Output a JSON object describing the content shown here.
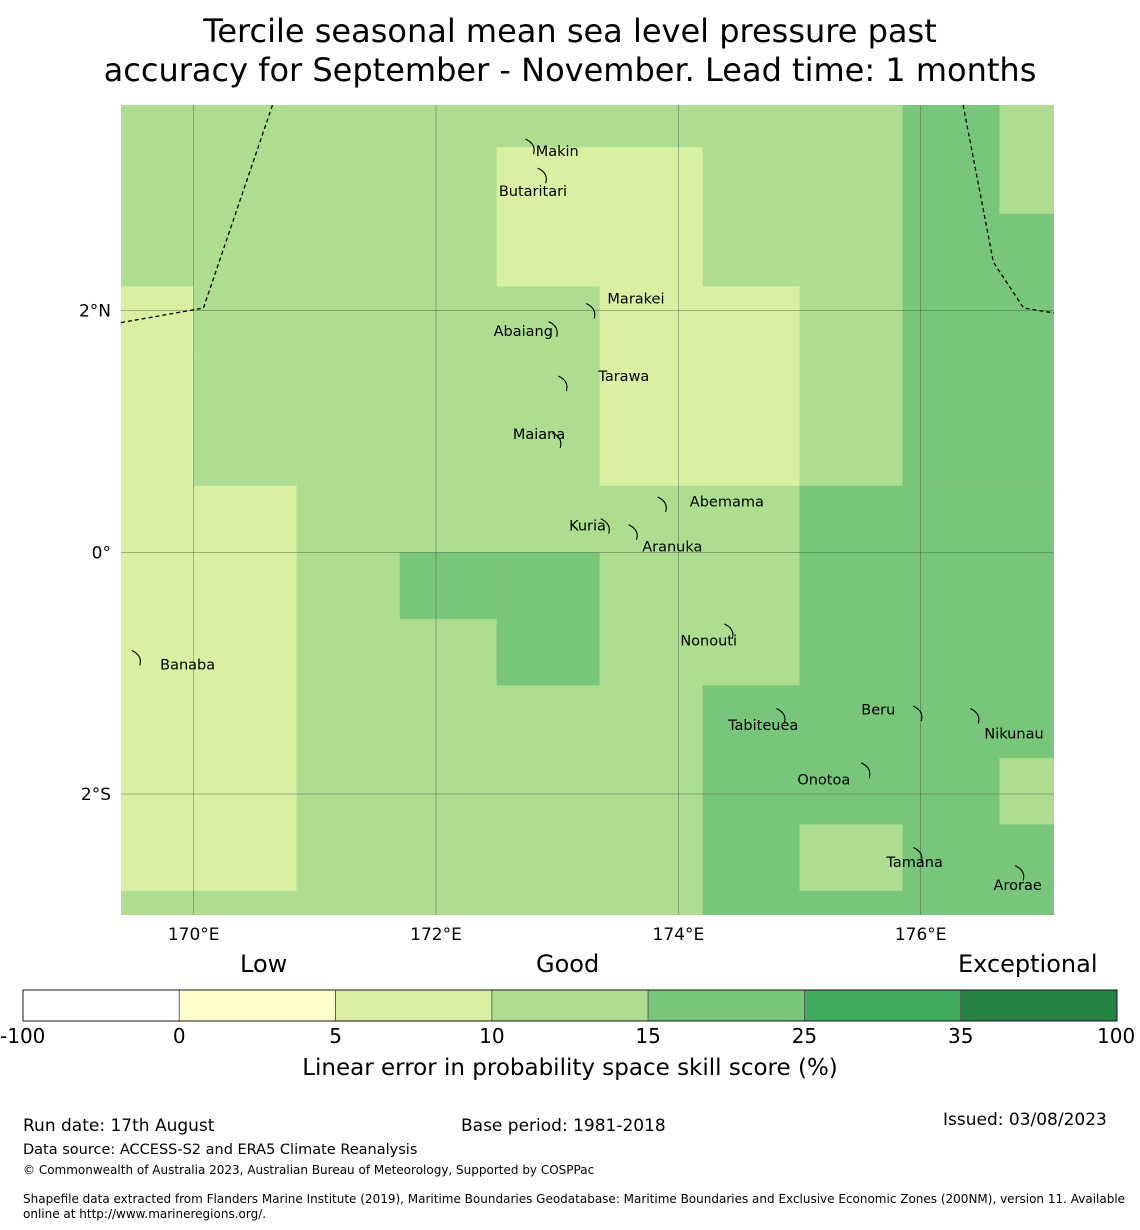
{
  "title_line1": "Tercile seasonal mean sea level pressure past",
  "title_line2": "accuracy for September - November. Lead time: 1 months",
  "map": {
    "lon_range": [
      169.4,
      177.1
    ],
    "lat_range": [
      -3.0,
      3.7
    ],
    "lon_ticks": [
      {
        "lon": 170,
        "label": "170°E"
      },
      {
        "lon": 172,
        "label": "172°E"
      },
      {
        "lon": 174,
        "label": "174°E"
      },
      {
        "lon": 176,
        "label": "176°E"
      }
    ],
    "lat_ticks": [
      {
        "lat": 2,
        "label": "2°N"
      },
      {
        "lat": 0,
        "label": "0°"
      },
      {
        "lat": -2,
        "label": "2°S"
      }
    ],
    "colors": {
      "c5_10": "#d9f0a3",
      "c10_15": "#addd8e",
      "c15_25": "#78c679",
      "c25_35": "#41ab5d",
      "c35_100": "#238443",
      "c0_5": "#ffffcc",
      "neg": "#ffffff"
    },
    "skill_cells": [
      {
        "lon": [
          171.7,
          172.5
        ],
        "lat": [
          -0.55,
          0.0
        ],
        "cat": "c15_25"
      },
      {
        "lon": [
          172.5,
          173.35
        ],
        "lat": [
          -1.1,
          0.0
        ],
        "cat": "c15_25"
      },
      {
        "lon": [
          174.2,
          175.0
        ],
        "lat": [
          -3.0,
          -1.1
        ],
        "cat": "c15_25"
      },
      {
        "lon": [
          175.0,
          177.1
        ],
        "lat": [
          -3.0,
          0.55
        ],
        "cat": "c15_25"
      },
      {
        "lon": [
          175.85,
          177.1
        ],
        "lat": [
          0.55,
          3.7
        ],
        "cat": "c15_25"
      },
      {
        "lon": [
          176.65,
          177.1
        ],
        "lat": [
          2.8,
          3.7
        ],
        "cat": "c10_15"
      },
      {
        "lon": [
          176.65,
          177.1
        ],
        "lat": [
          -2.25,
          -1.7
        ],
        "cat": "c10_15"
      },
      {
        "lon": [
          175.0,
          175.85
        ],
        "lat": [
          -2.8,
          -2.25
        ],
        "cat": "c10_15"
      },
      {
        "lon": [
          169.4,
          170.85
        ],
        "lat": [
          -2.8,
          2.2
        ],
        "cat": "c5_10"
      },
      {
        "lon": [
          170.0,
          170.85
        ],
        "lat": [
          1.65,
          2.2
        ],
        "cat": "c10_15"
      },
      {
        "lon": [
          170.0,
          170.85
        ],
        "lat": [
          0.55,
          1.65
        ],
        "cat": "c10_15"
      },
      {
        "lon": [
          172.5,
          174.2
        ],
        "lat": [
          2.2,
          3.35
        ],
        "cat": "c5_10"
      },
      {
        "lon": [
          173.35,
          175.0
        ],
        "lat": [
          0.55,
          2.2
        ],
        "cat": "c5_10"
      }
    ],
    "boundary_lines": [
      [
        [
          169.4,
          1.9
        ],
        [
          170.08,
          2.02
        ],
        [
          170.65,
          3.7
        ]
      ],
      [
        [
          176.35,
          3.7
        ],
        [
          176.6,
          2.4
        ],
        [
          176.85,
          2.02
        ],
        [
          177.1,
          1.98
        ]
      ]
    ],
    "islands": [
      {
        "name": "Makin",
        "lon": 172.78,
        "lat": 3.36,
        "label_lon": 173.0,
        "label_lat": 3.32
      },
      {
        "name": "Butaritari",
        "lon": 172.88,
        "lat": 3.12,
        "label_lon": 172.8,
        "label_lat": 2.99
      },
      {
        "name": "Marakei",
        "lon": 173.28,
        "lat": 2.0,
        "label_lon": 173.65,
        "label_lat": 2.1
      },
      {
        "name": "Abaiang",
        "lon": 172.97,
        "lat": 1.85,
        "label_lon": 172.72,
        "label_lat": 1.83
      },
      {
        "name": "Tarawa",
        "lon": 173.05,
        "lat": 1.4,
        "label_lon": 173.55,
        "label_lat": 1.46
      },
      {
        "name": "Maiana",
        "lon": 173.0,
        "lat": 0.93,
        "label_lon": 172.85,
        "label_lat": 0.98
      },
      {
        "name": "Abemama",
        "lon": 173.87,
        "lat": 0.4,
        "label_lon": 174.4,
        "label_lat": 0.42
      },
      {
        "name": "Kuria",
        "lon": 173.4,
        "lat": 0.22,
        "label_lon": 173.25,
        "label_lat": 0.22
      },
      {
        "name": "Aranuka",
        "lon": 173.63,
        "lat": 0.17,
        "label_lon": 173.95,
        "label_lat": 0.05
      },
      {
        "name": "Nonouti",
        "lon": 174.42,
        "lat": -0.65,
        "label_lon": 174.25,
        "label_lat": -0.73
      },
      {
        "name": "Banaba",
        "lon": 169.53,
        "lat": -0.87,
        "label_lon": 169.95,
        "label_lat": -0.93
      },
      {
        "name": "Tabiteuea",
        "lon": 174.85,
        "lat": -1.35,
        "label_lon": 174.7,
        "label_lat": -1.43
      },
      {
        "name": "Beru",
        "lon": 175.98,
        "lat": -1.33,
        "label_lon": 175.65,
        "label_lat": -1.3
      },
      {
        "name": "Nikunau",
        "lon": 176.45,
        "lat": -1.35,
        "label_lon": 176.77,
        "label_lat": -1.5
      },
      {
        "name": "Onotoa",
        "lon": 175.55,
        "lat": -1.8,
        "label_lon": 175.2,
        "label_lat": -1.88
      },
      {
        "name": "Tamana",
        "lon": 175.98,
        "lat": -2.5,
        "label_lon": 175.95,
        "label_lat": -2.56
      },
      {
        "name": "Arorae",
        "lon": 176.82,
        "lat": -2.65,
        "label_lon": 176.8,
        "label_lat": -2.75
      }
    ]
  },
  "colorbar": {
    "head_low": "Low",
    "head_good": "Good",
    "head_exceptional": "Exceptional",
    "ticks": [
      "-100",
      "0",
      "5",
      "10",
      "15",
      "25",
      "35",
      "100"
    ],
    "colors": [
      "#ffffff",
      "#ffffcc",
      "#d9f0a3",
      "#addd8e",
      "#78c679",
      "#41ab5d",
      "#238443"
    ],
    "label": "Linear error in probability space skill score (%)"
  },
  "footer": {
    "run_date": "Run date: 17th August",
    "base_period": "Base period: 1981-2018",
    "issued": "Issued: 03/08/2023",
    "data_source": "Data source: ACCESS-S2 and ERA5 Climate Reanalysis",
    "copyright": "© Commonwealth of Australia 2023, Australian Bureau of Meteorology, Supported by COSPPac",
    "shapefile_line1": "Shapefile data extracted from Flanders Marine Institute (2019), Maritime Boundaries Geodatabase: Maritime Boundaries and Exclusive Economic Zones (200NM), version 11. Available",
    "shapefile_line2": "online at http://www.marineregions.org/."
  }
}
